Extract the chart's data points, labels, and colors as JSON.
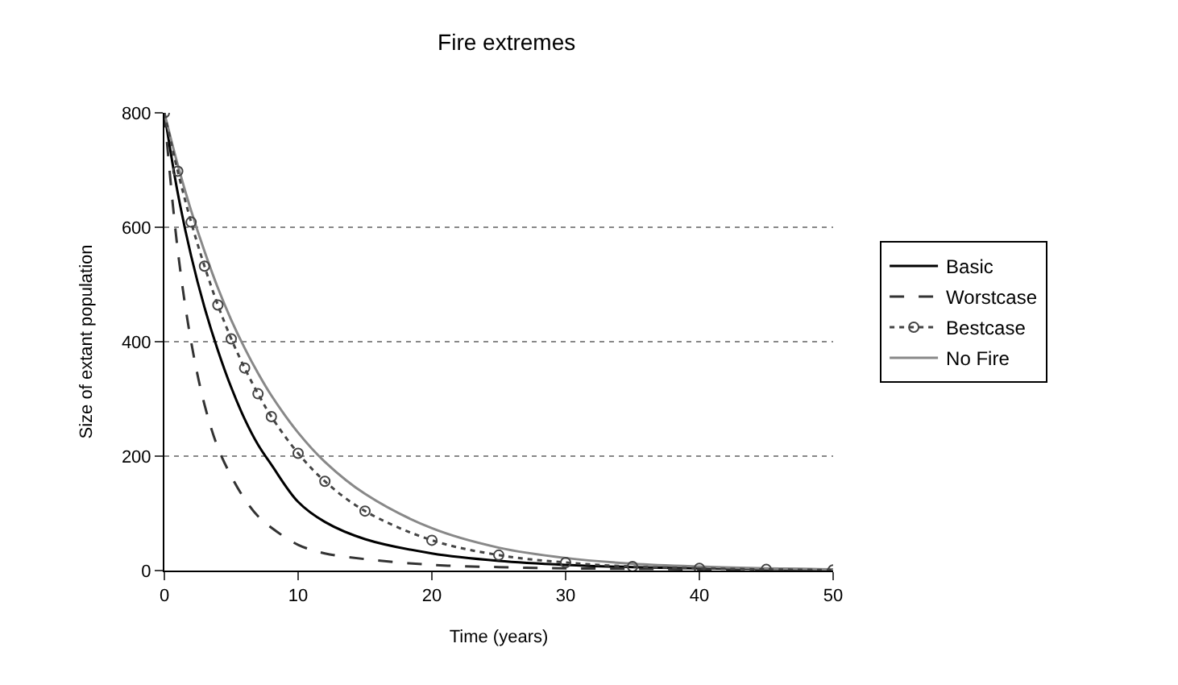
{
  "chart_data": {
    "type": "line",
    "title": "Fire extremes",
    "xlabel": "Time (years)",
    "ylabel": "Size of extant population",
    "x": [
      0,
      1,
      2,
      3,
      4,
      5,
      6,
      7,
      8,
      10,
      12,
      15,
      20,
      25,
      30,
      35,
      40,
      45,
      50
    ],
    "series": [
      {
        "name": "Basic",
        "color": "#000000",
        "line_style": "solid",
        "marker": "none",
        "values": [
          800,
          660,
          550,
          460,
          385,
          320,
          265,
          220,
          185,
          120,
          85,
          55,
          30,
          17,
          10,
          6,
          4,
          3,
          2
        ]
      },
      {
        "name": "Worstcase",
        "color": "#333333",
        "line_style": "dashed",
        "marker": "none",
        "values": [
          800,
          560,
          400,
          290,
          215,
          165,
          125,
          95,
          75,
          45,
          30,
          20,
          10,
          6,
          4,
          3,
          2,
          1,
          1
        ]
      },
      {
        "name": "Bestcase",
        "color": "#444444",
        "line_style": "dotted",
        "marker": "circle",
        "values": [
          800,
          698,
          609,
          532,
          464,
          405,
          354,
          309,
          269,
          205,
          156,
          104,
          53,
          27,
          14,
          7,
          4,
          2,
          1
        ]
      },
      {
        "name": "No Fire",
        "color": "#888888",
        "line_style": "solid",
        "marker": "none",
        "values": [
          800,
          709,
          629,
          558,
          494,
          438,
          389,
          345,
          306,
          241,
          190,
          134,
          74,
          40,
          22,
          12,
          7,
          4,
          2
        ]
      }
    ],
    "xlim": [
      0,
      50
    ],
    "xticks": [
      0,
      10,
      20,
      30,
      40,
      50
    ],
    "ylim": [
      0,
      800
    ],
    "yticks": [
      0,
      200,
      400,
      600,
      800
    ],
    "grid": "y",
    "legend": "right"
  }
}
